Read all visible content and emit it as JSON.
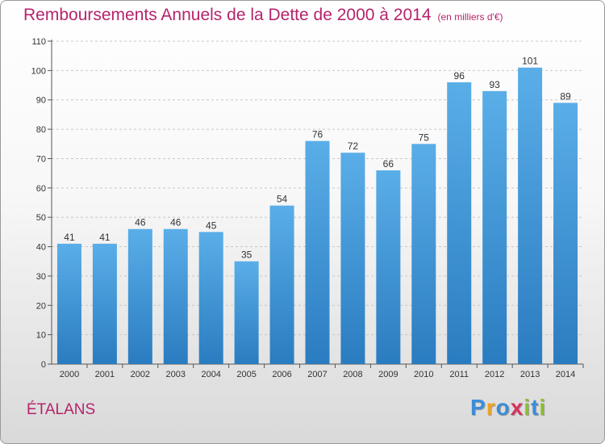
{
  "header": {
    "title": "Remboursements Annuels de la Dette de 2000 à 2014",
    "subtitle": "(en milliers d'€)"
  },
  "footer": {
    "place": "ÉTALANS",
    "logo_letters": [
      "P",
      "r",
      "o",
      "x",
      "i",
      "t",
      "i"
    ],
    "logo_colors": [
      "#3a8ed8",
      "#f0a21a",
      "#3a8ed8",
      "#d6335f",
      "#8bbf2f",
      "#3a8ed8",
      "#8bbf2f"
    ]
  },
  "chart_data": {
    "type": "bar",
    "title": "Remboursements Annuels de la Dette de 2000 à 2014",
    "subtitle": "(en milliers d'€)",
    "categories": [
      "2000",
      "2001",
      "2002",
      "2003",
      "2004",
      "2005",
      "2006",
      "2007",
      "2008",
      "2009",
      "2010",
      "2011",
      "2012",
      "2013",
      "2014"
    ],
    "values": [
      41,
      41,
      46,
      46,
      45,
      35,
      54,
      76,
      72,
      66,
      75,
      96,
      93,
      101,
      89
    ],
    "ylim": [
      0,
      110
    ],
    "yticks": [
      0,
      10,
      20,
      30,
      40,
      50,
      60,
      70,
      80,
      90,
      100,
      110
    ],
    "grid": true,
    "bar_color_top": "#5aaee8",
    "bar_color_bottom": "#2a7cc0",
    "label_color": "#333333"
  }
}
